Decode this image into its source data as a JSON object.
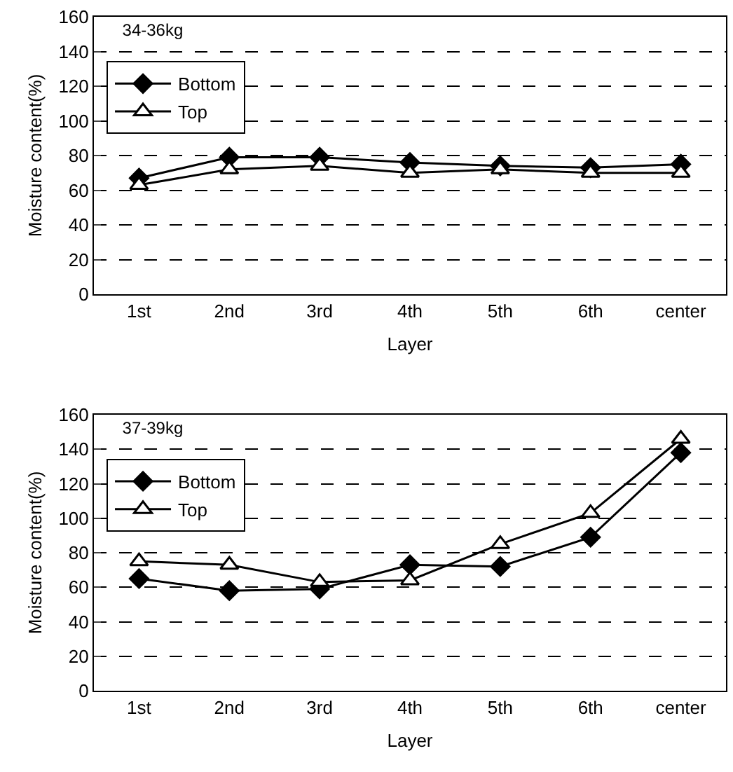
{
  "chart_data": [
    {
      "type": "line",
      "title": "34-36kg",
      "xlabel": "Layer",
      "ylabel": "Moisture content(%)",
      "categories": [
        "1st",
        "2nd",
        "3rd",
        "4th",
        "5th",
        "6th",
        "center"
      ],
      "series": [
        {
          "name": "Bottom",
          "color": "#000000",
          "marker": "diamond",
          "values": [
            67,
            79,
            79,
            76,
            74,
            73,
            75
          ]
        },
        {
          "name": "Top",
          "color": "#000000",
          "marker": "triangle",
          "values": [
            63,
            72,
            74,
            70,
            72,
            70,
            70
          ]
        }
      ],
      "ylim": [
        0,
        160
      ],
      "yticks": [
        0,
        20,
        40,
        60,
        80,
        100,
        120,
        140,
        160
      ],
      "grid": "y",
      "legend": "top left",
      "line_style": "solid"
    },
    {
      "type": "line",
      "title": "37-39kg",
      "xlabel": "Layer",
      "ylabel": "Moisture content(%)",
      "categories": [
        "1st",
        "2nd",
        "3rd",
        "4th",
        "5th",
        "6th",
        "center"
      ],
      "series": [
        {
          "name": "Bottom",
          "color": "#000000",
          "marker": "diamond",
          "values": [
            65,
            58,
            59,
            73,
            72,
            89,
            138
          ]
        },
        {
          "name": "Top",
          "color": "#000000",
          "marker": "triangle",
          "values": [
            75,
            73,
            63,
            64,
            85,
            103,
            146
          ]
        }
      ],
      "ylim": [
        0,
        160
      ],
      "yticks": [
        0,
        20,
        40,
        60,
        80,
        100,
        120,
        140,
        160
      ],
      "grid": "y",
      "legend": "top left",
      "line_style": "solid"
    }
  ]
}
